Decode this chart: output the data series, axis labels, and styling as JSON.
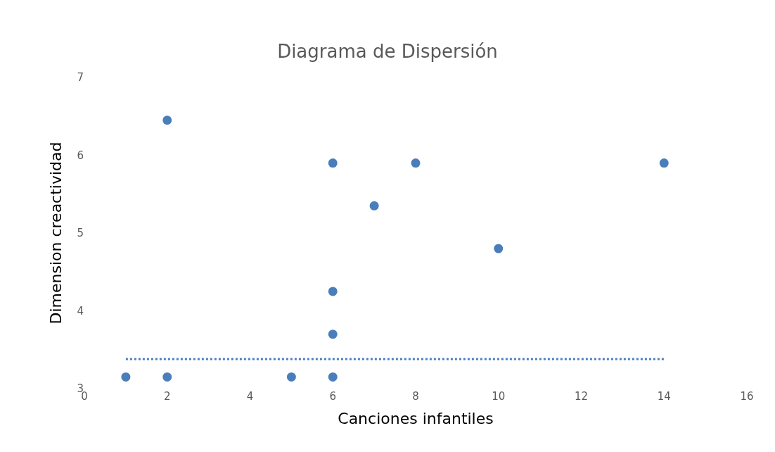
{
  "chart_data": {
    "type": "scatter",
    "title": "Diagrama de Dispersión",
    "xlabel": "Canciones infantiles",
    "ylabel": "Dimension creactividad",
    "xlim": [
      0,
      16
    ],
    "xticks": [
      0,
      2,
      4,
      6,
      8,
      10,
      12,
      14,
      16
    ],
    "ylim": [
      3,
      7
    ],
    "yticks": [
      3,
      4,
      5,
      6,
      7
    ],
    "grid": false,
    "legend": false,
    "marker": "circle",
    "series": [
      {
        "color": "#4a7ebb",
        "x": [
          1,
          2,
          2,
          5,
          6,
          6,
          6,
          6,
          7,
          8,
          10,
          14
        ],
        "values": [
          3.15,
          3.15,
          6.45,
          3.15,
          3.15,
          3.7,
          4.25,
          5.9,
          5.35,
          5.9,
          4.8,
          5.9
        ]
      },
      {
        "type": "line",
        "color": "#4a7ebb",
        "line_style": "dotted",
        "marker": "none",
        "x": [
          1,
          14
        ],
        "values": [
          3.38,
          3.38
        ]
      }
    ]
  }
}
